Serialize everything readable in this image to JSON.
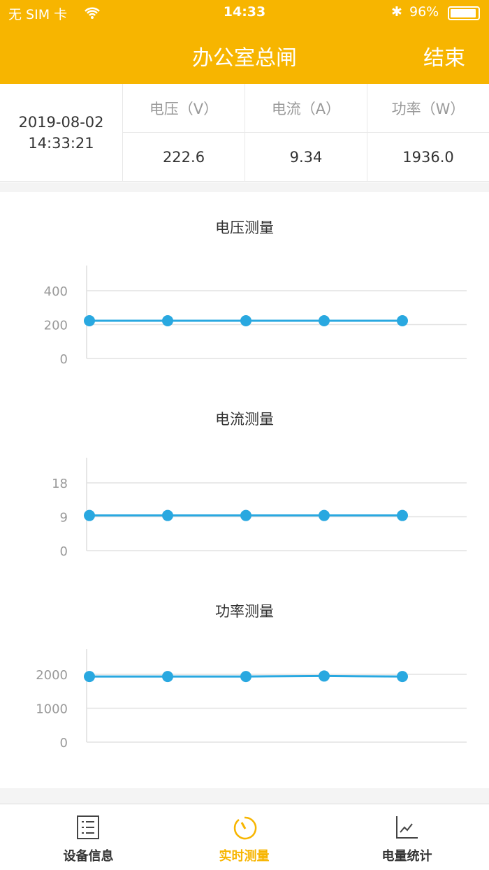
{
  "status_bar": {
    "carrier": "无 SIM 卡",
    "time": "14:33",
    "battery": "96%",
    "battery_level": 0.96
  },
  "header": {
    "title": "办公室总闸",
    "end_label": "结束"
  },
  "reading": {
    "date": "2019-08-02",
    "time": "14:33:21",
    "columns": [
      {
        "label": "电压（V）",
        "value": "222.6"
      },
      {
        "label": "电流（A）",
        "value": "9.34"
      },
      {
        "label": "功率（W）",
        "value": "1936.0"
      }
    ]
  },
  "colors": {
    "accent": "#f7b500",
    "series": "#29a8e0"
  },
  "chart_data": [
    {
      "type": "line",
      "title": "电压测量",
      "ylim": [
        0,
        400
      ],
      "yticks": [
        "0",
        "200",
        "400"
      ],
      "grid": true,
      "values": [
        222.6,
        222.6,
        222.6,
        222.6,
        222.6
      ]
    },
    {
      "type": "line",
      "title": "电流测量",
      "ylim": [
        0,
        18
      ],
      "yticks": [
        "0",
        "9",
        "18"
      ],
      "grid": true,
      "values": [
        9.34,
        9.34,
        9.34,
        9.34,
        9.34
      ]
    },
    {
      "type": "line",
      "title": "功率测量",
      "ylim": [
        0,
        2000
      ],
      "yticks": [
        "0",
        "1000",
        "2000"
      ],
      "grid": true,
      "values": [
        1936,
        1936,
        1936,
        1950,
        1936
      ]
    }
  ],
  "tabs": [
    {
      "label": "设备信息",
      "icon": "list-icon"
    },
    {
      "label": "实时测量",
      "icon": "timer-icon",
      "active": true
    },
    {
      "label": "电量统计",
      "icon": "line-chart-icon"
    }
  ]
}
